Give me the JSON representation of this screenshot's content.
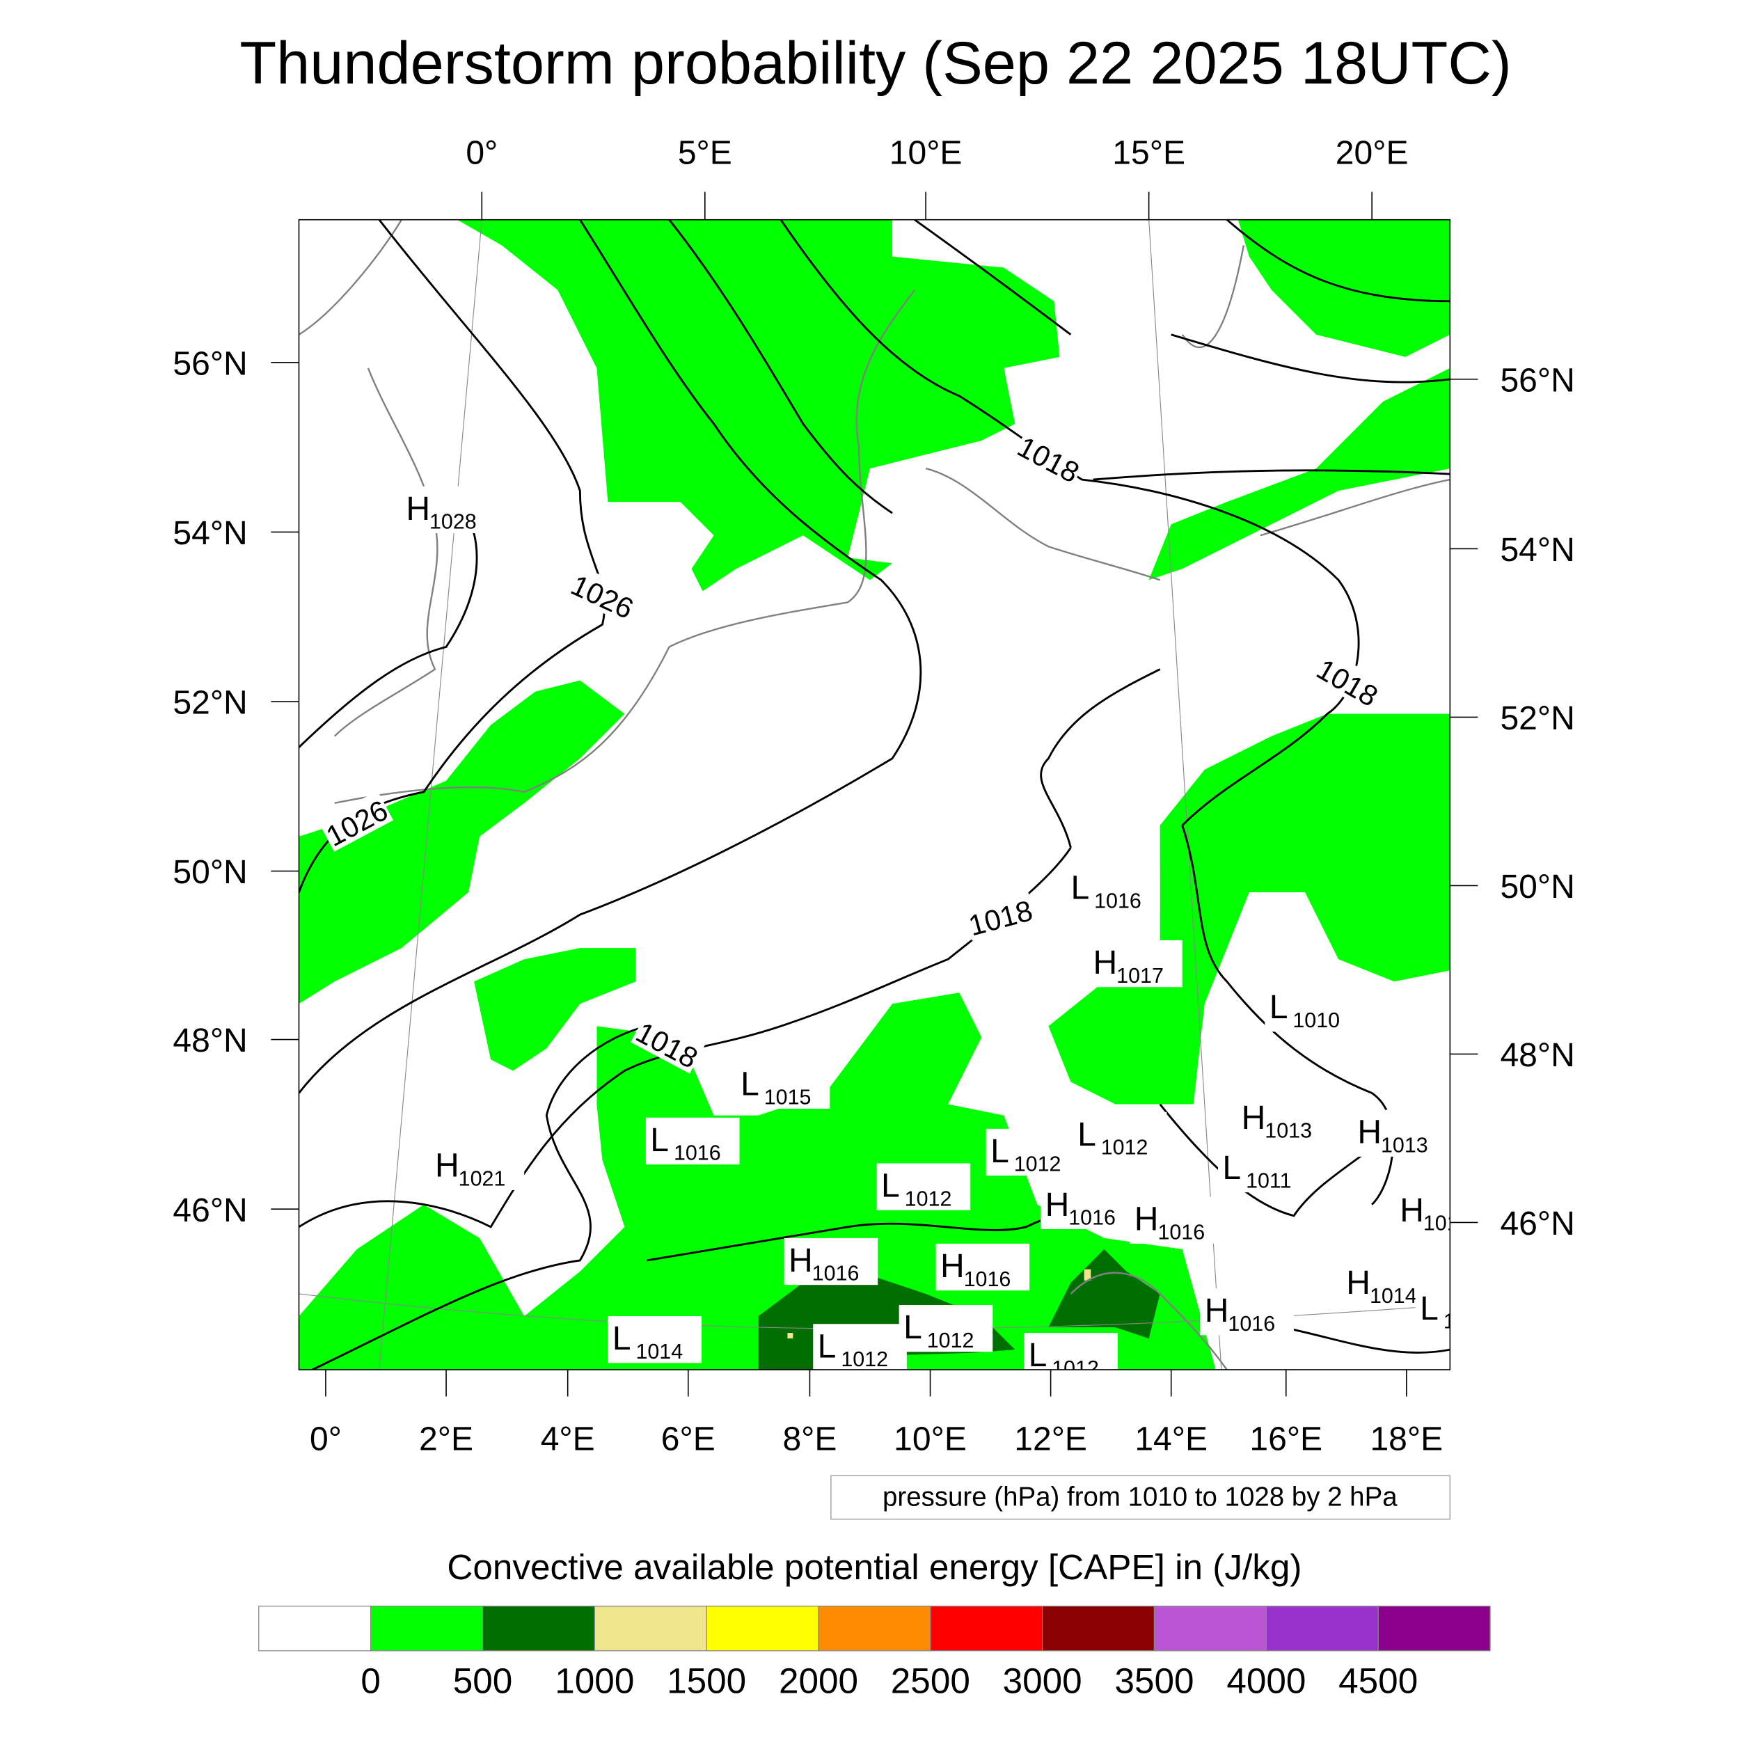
{
  "title": "Thunderstorm probability (Sep 22 2025 18UTC)",
  "top_lon_labels": [
    "0°",
    "5°E",
    "10°E",
    "15°E",
    "20°E"
  ],
  "bottom_lon_labels": [
    "0°",
    "2°E",
    "4°E",
    "6°E",
    "8°E",
    "10°E",
    "12°E",
    "14°E",
    "16°E",
    "18°E"
  ],
  "left_lat_labels": [
    "56°N",
    "54°N",
    "52°N",
    "50°N",
    "48°N",
    "46°N"
  ],
  "right_lat_labels": [
    "56°N",
    "54°N",
    "52°N",
    "50°N",
    "48°N",
    "46°N"
  ],
  "contour_labels": [
    "1026",
    "1026",
    "1018",
    "1018",
    "1018",
    "1018"
  ],
  "pressure_centers": [
    {
      "type": "H",
      "value": "1028"
    },
    {
      "type": "H",
      "value": "1021"
    },
    {
      "type": "L",
      "value": "1016"
    },
    {
      "type": "H",
      "value": "1017"
    },
    {
      "type": "L",
      "value": "1010"
    },
    {
      "type": "L",
      "value": "1015"
    },
    {
      "type": "L",
      "value": "1016"
    },
    {
      "type": "L",
      "value": "1012"
    },
    {
      "type": "L",
      "value": "1012"
    },
    {
      "type": "L",
      "value": "1012"
    },
    {
      "type": "H",
      "value": "1013"
    },
    {
      "type": "H",
      "value": "1013"
    },
    {
      "type": "L",
      "value": "1011"
    },
    {
      "type": "H",
      "value": "1016"
    },
    {
      "type": "H",
      "value": "1016"
    },
    {
      "type": "H",
      "value": "101"
    },
    {
      "type": "H",
      "value": "1016"
    },
    {
      "type": "H",
      "value": "1016"
    },
    {
      "type": "H",
      "value": "1014"
    },
    {
      "type": "L",
      "value": "1"
    },
    {
      "type": "H",
      "value": "1016"
    },
    {
      "type": "L",
      "value": "1014"
    },
    {
      "type": "L",
      "value": "1012"
    },
    {
      "type": "L",
      "value": "1012"
    },
    {
      "type": "L",
      "value": "1012"
    }
  ],
  "contour_info": "pressure (hPa) from 1010 to 1028 by 2 hPa",
  "colorbar": {
    "title": "Convective available potential energy [CAPE] in (J/kg)",
    "colors": [
      "#ffffff",
      "#00ff00",
      "#006e00",
      "#f0e68c",
      "#ffff00",
      "#ff8c00",
      "#ff0000",
      "#8b0000",
      "#ba55d3",
      "#9932cc",
      "#8b008b"
    ],
    "tick_labels": [
      "0",
      "500",
      "1000",
      "1500",
      "2000",
      "2500",
      "3000",
      "3500",
      "4000",
      "4500"
    ]
  },
  "colors": {
    "light_green": "#00ff00",
    "dark_green": "#006e00",
    "khaki": "#f0e68c",
    "coast": "#808080"
  }
}
